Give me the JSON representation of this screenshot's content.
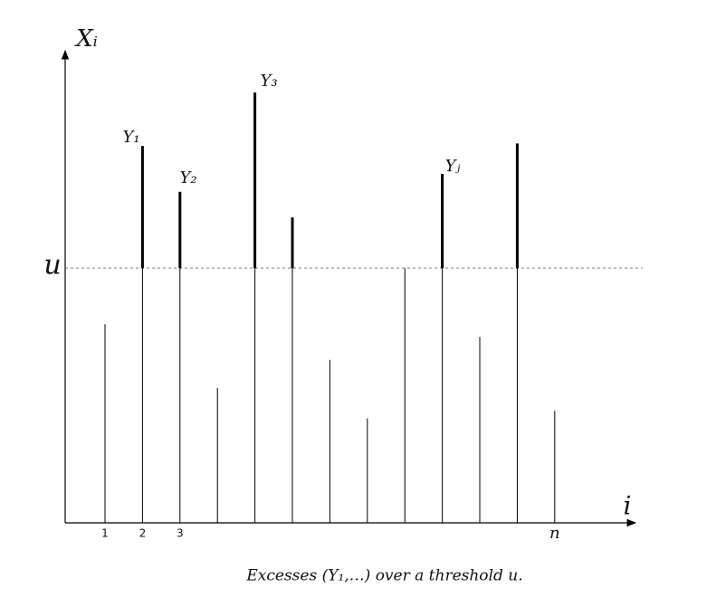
{
  "chart_data": {
    "type": "stem",
    "categories": [
      "1",
      "2",
      "3",
      null,
      null,
      null,
      null,
      null,
      null,
      null,
      null,
      null,
      "n"
    ],
    "values": [
      7.8,
      14.8,
      13.0,
      5.3,
      16.9,
      12.0,
      6.4,
      4.1,
      10.0,
      13.7,
      7.3,
      14.9,
      4.4
    ],
    "ylim": [
      0,
      18.4
    ],
    "yticks": [
      {
        "value": 10,
        "label": "u"
      }
    ],
    "x_label": "i",
    "y_label": "Xᵢ",
    "annotations": [
      "Y₁",
      "Y₂",
      "Y₃",
      "Yⱼ"
    ],
    "caption": "Excesses (Y₁,…) over a threshold u.",
    "color": "#000000"
  }
}
